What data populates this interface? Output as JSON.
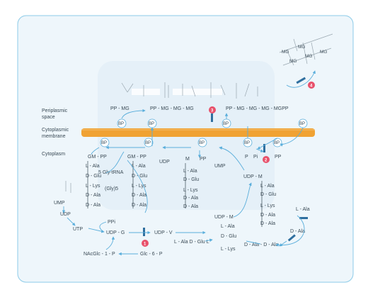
{
  "regions": {
    "periplasmic": [
      "Periplasmic",
      "space"
    ],
    "membrane": [
      "Cytoplasmic",
      "membrane"
    ],
    "cytoplasm": "Cytoplasm"
  },
  "top_glycan": {
    "mg": [
      "MG",
      "MG",
      "MG",
      "MG",
      "MG"
    ]
  },
  "periplasm_chains": {
    "left": "PP - MG",
    "middle": "PP - MG - MG - MG",
    "right": "PP - MG - MG - MG - MGPP"
  },
  "membrane_labels": {
    "top": [
      "BP",
      "BP",
      "BP",
      "BP"
    ],
    "bottom": [
      "BP",
      "BP",
      "BP",
      "BP",
      "BP"
    ]
  },
  "step_badges": [
    "1",
    "2",
    "3",
    "4"
  ],
  "cytoplasm": {
    "col1": {
      "head": "GM - PP",
      "items": [
        "L - Ala",
        "D - Glu",
        "L - Lys",
        "D - Ala",
        "D - Ala"
      ],
      "side": [
        "5 Gly-tRNA",
        "(Gly)5"
      ]
    },
    "col2": {
      "head": "GM - PP",
      "items": [
        "L - Ala",
        "D - Glu",
        "L - Lys",
        "D - Ala",
        "D - Ala"
      ]
    },
    "col3": {
      "head": "M",
      "head2": "PP",
      "items": [
        "L - Ala",
        "D - Glu",
        "L - Lys",
        "D - Ala",
        "D - Ala"
      ]
    },
    "udp_top": "UDP",
    "ump": "UMP",
    "pp_right": [
      "P",
      "Pi",
      "PP"
    ],
    "col4": {
      "head": "UDP - M",
      "items": [
        "L - Ala",
        "D - Glu",
        "L - Lys",
        "D - Ala",
        "D - Ala"
      ]
    },
    "lala_free": "L - Ala",
    "dala": "D - Ala",
    "ump2": "UMP",
    "udp": "UDP",
    "utp": "UTP",
    "ppi": "PPi",
    "udp_g": "UDP - G",
    "udp_v": "UDP - V",
    "udp_m": "UDP - M",
    "stack5": [
      "L - Ala",
      "D - Glu",
      "L - Lys"
    ],
    "ala_glu_l": "L - Ala  D - Glu  L",
    "dala_dala": "D - Ala - D - Ala",
    "nacglc": "NAcGlc - 1 - P",
    "glc6p": "Glc - 6 - P"
  },
  "colors": {
    "bg": "#ffffff",
    "panel": "#eef6fb",
    "panel_border": "#8ccbe8",
    "membrane": "#f0a233",
    "arrow": "#5aaedb",
    "inhibitor": "#2f6f9f",
    "badge": "#e8516b"
  }
}
